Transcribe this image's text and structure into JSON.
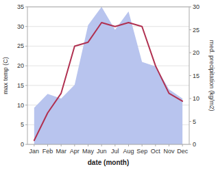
{
  "chart_data": {
    "type": "line",
    "categories": [
      "Jan",
      "Feb",
      "Mar",
      "Apr",
      "May",
      "Jun",
      "Jul",
      "Aug",
      "Sep",
      "Oct",
      "Nov",
      "Dec"
    ],
    "series": [
      {
        "type": "area",
        "axis": "y2",
        "color": "#b8c4ee",
        "values": [
          8,
          11,
          10,
          13,
          26,
          30,
          25,
          29,
          18,
          17,
          12,
          10
        ]
      },
      {
        "type": "line",
        "color": "#b03050",
        "values": [
          1,
          8,
          13,
          25,
          26,
          31,
          30,
          31,
          30,
          20,
          13,
          11
        ]
      }
    ],
    "xlabel": "date (month)",
    "ylabel": "max temp (C)",
    "y2label": "med. precipitation (kg/m2)",
    "ylim": [
      0,
      35
    ],
    "yticks": [
      0,
      5,
      10,
      15,
      20,
      25,
      30,
      35
    ],
    "y2lim": [
      0,
      30
    ],
    "y2ticks": [
      0,
      5,
      10,
      15,
      20,
      25,
      30
    ],
    "grid": true
  }
}
